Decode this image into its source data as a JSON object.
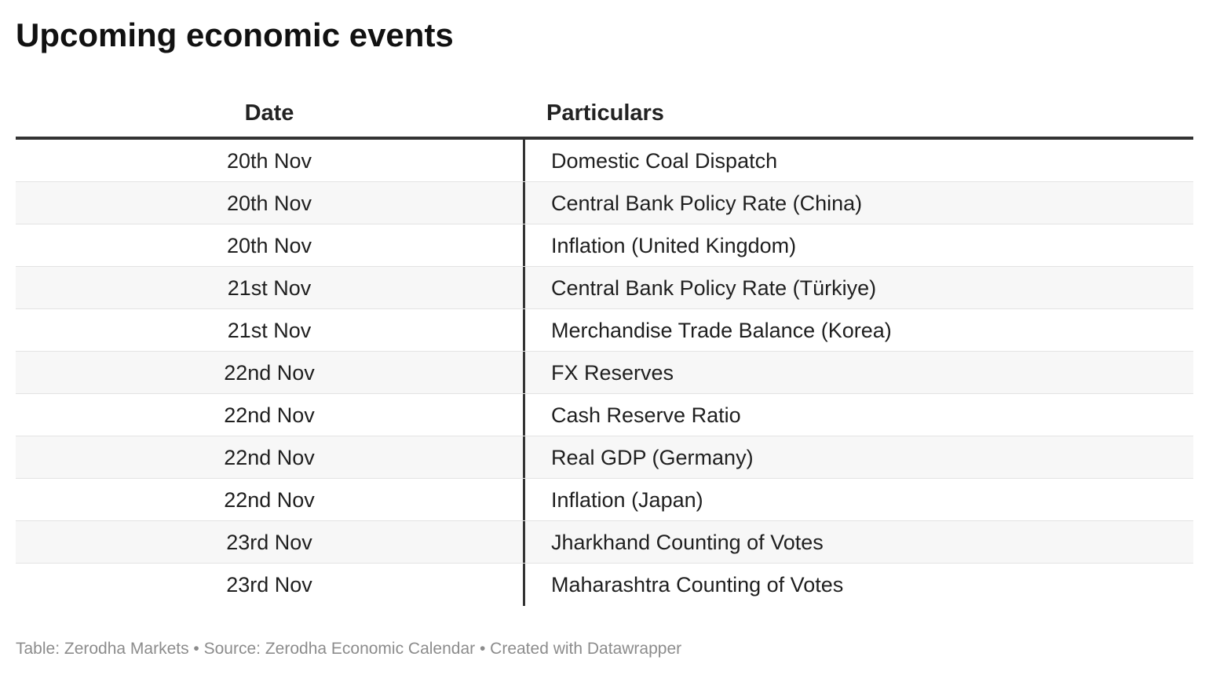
{
  "title": "Upcoming economic events",
  "table": {
    "headers": [
      "Date",
      "Particulars"
    ],
    "rows": [
      {
        "date": "20th Nov",
        "particulars": "Domestic Coal Dispatch"
      },
      {
        "date": "20th Nov",
        "particulars": "Central Bank Policy Rate (China)"
      },
      {
        "date": "20th Nov",
        "particulars": "Inflation (United Kingdom)"
      },
      {
        "date": "21st Nov",
        "particulars": "Central Bank Policy Rate (Türkiye)"
      },
      {
        "date": "21st Nov",
        "particulars": "Merchandise Trade Balance (Korea)"
      },
      {
        "date": "22nd Nov",
        "particulars": "FX Reserves"
      },
      {
        "date": "22nd Nov",
        "particulars": "Cash Reserve Ratio"
      },
      {
        "date": "22nd Nov",
        "particulars": "Real GDP (Germany)"
      },
      {
        "date": "22nd Nov",
        "particulars": "Inflation (Japan)"
      },
      {
        "date": "23rd Nov",
        "particulars": "Jharkhand Counting of Votes"
      },
      {
        "date": "23rd Nov",
        "particulars": "Maharashtra Counting of Votes"
      }
    ]
  },
  "footer": "Table: Zerodha Markets • Source: Zerodha Economic Calendar • Created with Datawrapper",
  "colors": {
    "divider": "#333333",
    "stripe": "#f7f7f7",
    "footer_text": "#8c8c8c"
  }
}
